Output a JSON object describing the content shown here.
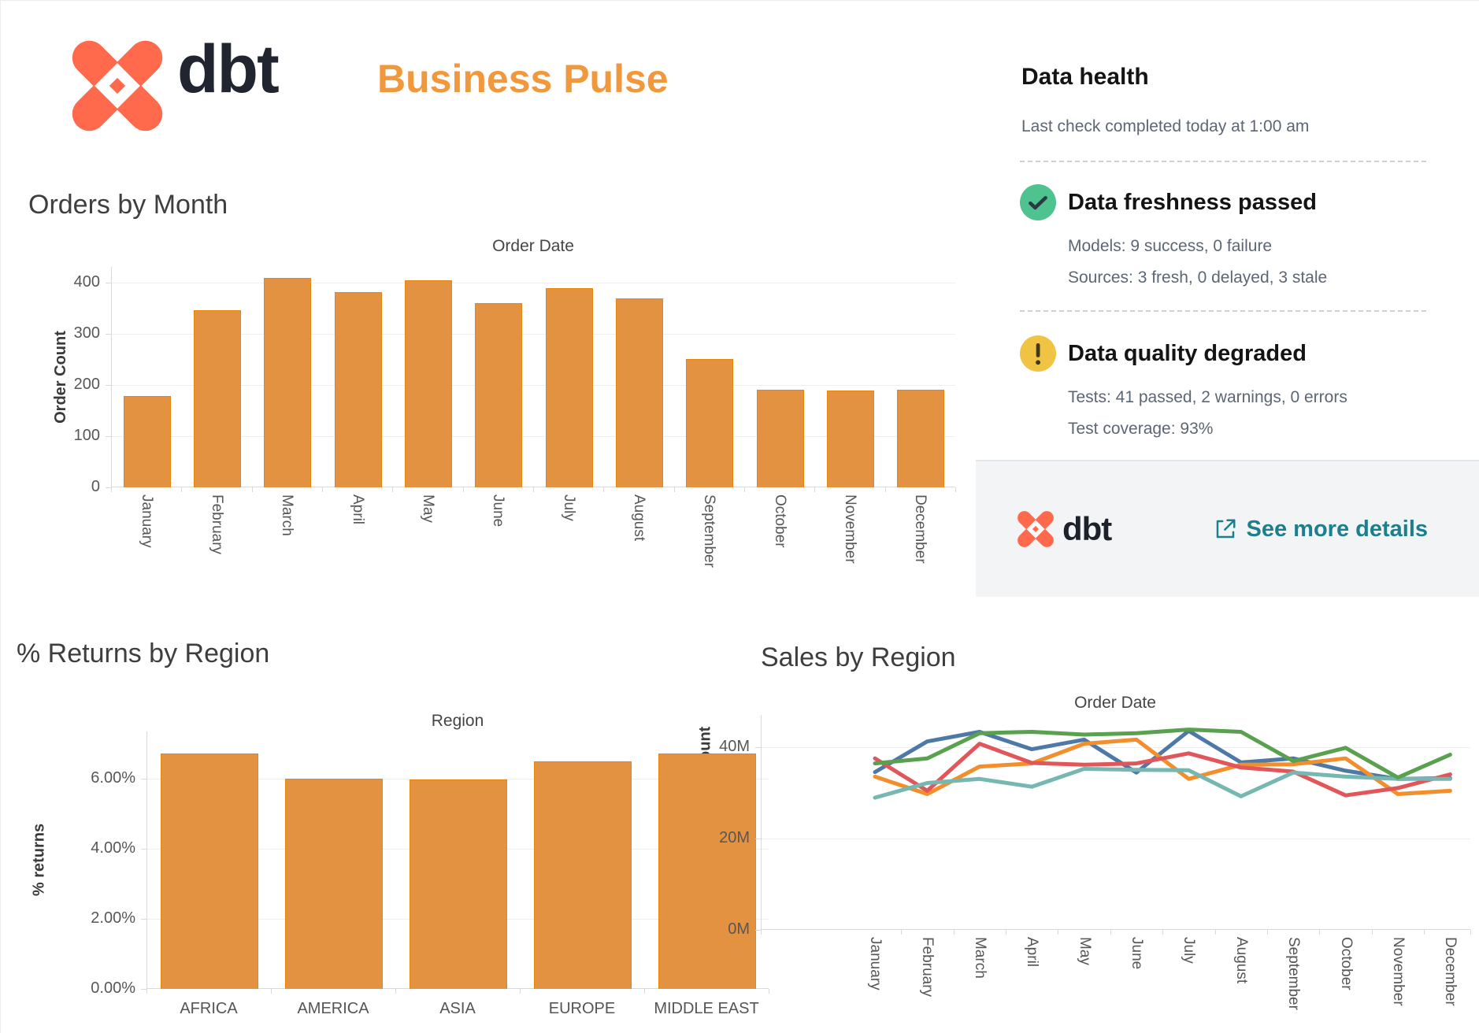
{
  "header": {
    "brand_wordmark": "dbt",
    "title": "Business Pulse"
  },
  "data_health": {
    "title": "Data health",
    "last_check": "Last check completed today at 1:00 am",
    "freshness": {
      "status": "passed",
      "label": "Data freshness passed",
      "models_line": "Models: 9 success, 0 failure",
      "sources_line": "Sources: 3 fresh, 0 delayed, 3 stale",
      "icon": "check-circle-icon",
      "icon_color": "#4EC38F"
    },
    "quality": {
      "status": "warning",
      "label": "Data quality degraded",
      "tests_line": "Tests: 41 passed, 2 warnings, 0 errors",
      "coverage_line": "Test coverage: 93%",
      "icon": "warning-circle-icon",
      "icon_color": "#F0C343"
    },
    "footer": {
      "brand_wordmark": "dbt",
      "link_label": "See more details",
      "link_color": "#1B7F8C"
    }
  },
  "brand": {
    "logo_color": "#FF6A4D",
    "wordmark_color": "#21252F",
    "title_color": "#F0983B"
  },
  "chart_data": [
    {
      "id": "orders-by-month",
      "type": "bar",
      "title": "Orders by Month",
      "axis_title": "Order Date",
      "ylabel": "Order Count",
      "categories": [
        "January",
        "February",
        "March",
        "April",
        "May",
        "June",
        "July",
        "August",
        "September",
        "October",
        "November",
        "December"
      ],
      "values": [
        178,
        346,
        408,
        381,
        404,
        360,
        388,
        368,
        251,
        190,
        189,
        190
      ],
      "yticks": [
        0,
        100,
        200,
        300,
        400
      ],
      "ytick_labels": [
        "0",
        "100",
        "200",
        "300",
        "400"
      ],
      "ylim": [
        0,
        430
      ],
      "grid": true,
      "legend": "none",
      "bar_color": "#E39242",
      "bar_border": "#E8860C"
    },
    {
      "id": "returns-by-region",
      "type": "bar",
      "title": "% Returns by Region",
      "axis_title": "Region",
      "ylabel": "% returns",
      "categories": [
        "AFRICA",
        "AMERICA",
        "ASIA",
        "EUROPE",
        "MIDDLE EAST"
      ],
      "values": [
        6.72,
        6.01,
        5.97,
        6.5,
        6.73
      ],
      "yticks": [
        0,
        2,
        4,
        6
      ],
      "ytick_labels": [
        "0.00%",
        "2.00%",
        "4.00%",
        "6.00%"
      ],
      "ylim": [
        0,
        7.35
      ],
      "grid": true,
      "legend": "none",
      "bar_color": "#E39242",
      "bar_border": "#E8860C"
    },
    {
      "id": "sales-by-region",
      "type": "line",
      "title": "Sales by Region",
      "axis_title": "Order Date",
      "ylabel": "Gross Item Sales Amount",
      "categories": [
        "January",
        "February",
        "March",
        "April",
        "May",
        "June",
        "July",
        "August",
        "September",
        "October",
        "November",
        "December"
      ],
      "unit": "M",
      "series": [
        {
          "name": "series-blue",
          "color": "#4E79A7",
          "values": [
            34.5,
            41.2,
            43.3,
            39.5,
            41.6,
            34.4,
            43.5,
            36.6,
            37.5,
            34.8,
            33.0,
            33.2
          ]
        },
        {
          "name": "series-orange",
          "color": "#F28E2B",
          "values": [
            33.5,
            29.7,
            35.7,
            36.4,
            40.7,
            41.6,
            33.0,
            36.1,
            36.2,
            37.5,
            29.7,
            30.4
          ]
        },
        {
          "name": "series-red",
          "color": "#E15759",
          "values": [
            37.5,
            30.4,
            40.7,
            36.5,
            36.1,
            36.4,
            38.6,
            35.5,
            34.6,
            29.4,
            31.0,
            34.0
          ]
        },
        {
          "name": "series-teal",
          "color": "#76B7B2",
          "values": [
            28.9,
            32.1,
            33.0,
            31.3,
            35.2,
            35.0,
            34.9,
            29.2,
            34.4,
            33.5,
            33.0,
            33.0
          ]
        },
        {
          "name": "series-green",
          "color": "#59A14F",
          "values": [
            36.4,
            37.5,
            43.0,
            43.3,
            42.7,
            43.0,
            43.8,
            43.3,
            36.9,
            39.8,
            33.3,
            38.3
          ]
        }
      ],
      "yticks": [
        0,
        20,
        40
      ],
      "ytick_labels": [
        "0M",
        "20M",
        "40M"
      ],
      "ylim": [
        0,
        47
      ],
      "grid": true,
      "legend": "none"
    }
  ]
}
